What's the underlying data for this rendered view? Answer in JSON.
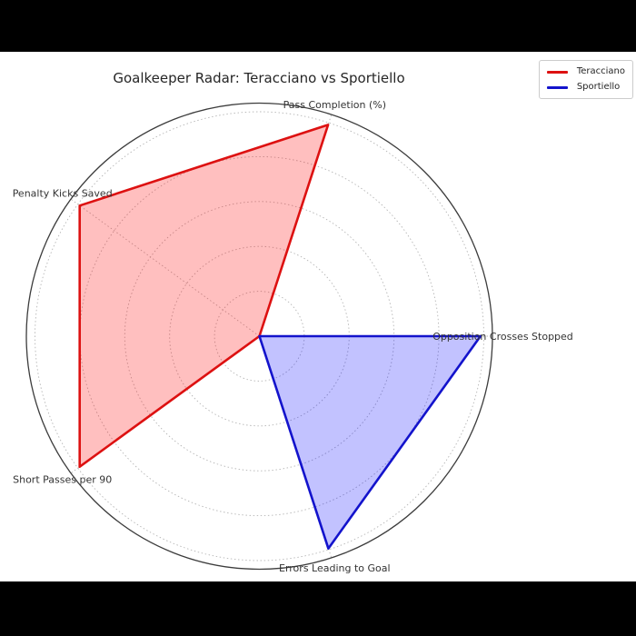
{
  "page": {
    "background_color": "#000000",
    "canvas_color": "#ffffff"
  },
  "chart_data": {
    "type": "radar",
    "title": "Goalkeeper Radar: Teracciano vs Sportiello",
    "categories": [
      "Opposition Crosses Stopped",
      "Pass Completion (%)",
      "Penalty Kicks Saved",
      "Short Passes per 90",
      "Errors Leading to Goal"
    ],
    "angles_deg": [
      0,
      72,
      144,
      216,
      288
    ],
    "series": [
      {
        "name": "Teracciano",
        "line_color": "#dd1111",
        "fill_color": "rgba(255,0,0,0.25)",
        "values": [
          0,
          0.99,
          0.99,
          0.99,
          0
        ]
      },
      {
        "name": "Sportiello",
        "line_color": "#1313cc",
        "fill_color": "rgba(0,0,255,0.24)",
        "values": [
          0.985,
          0,
          0,
          0,
          0.995
        ]
      }
    ],
    "r_axis": {
      "min": 0,
      "max": 1.0,
      "ticks": [
        0.2,
        0.4,
        0.6,
        0.8,
        1.0
      ],
      "tick_labels_visible": false
    },
    "grid": {
      "visible": true,
      "style": "dashed",
      "color": "#b5b5b5"
    },
    "outline_color": "#3c3c3c",
    "label_color": "#333333",
    "legend": {
      "position": "upper-right",
      "entries": [
        "Teracciano",
        "Sportiello"
      ]
    }
  }
}
